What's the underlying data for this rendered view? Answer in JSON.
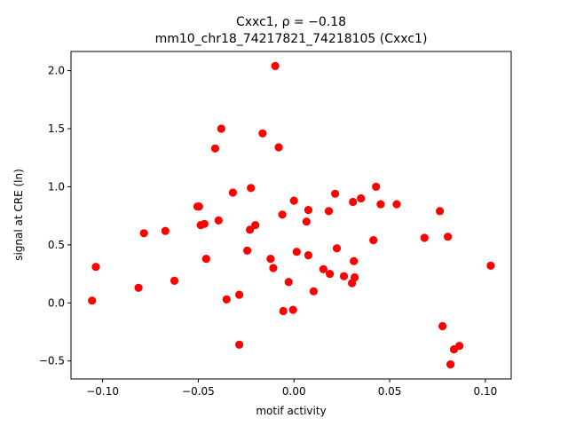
{
  "chart_data": {
    "type": "scatter",
    "title": "Cxxc1, ρ = −0.18",
    "subtitle": "mm10_chr18_74217821_74218105 (Cxxc1)",
    "xlabel": "motif activity",
    "ylabel": "signal at CRE (ln)",
    "xlim": [
      -0.1165,
      0.1135
    ],
    "ylim": [
      -0.655,
      2.165
    ],
    "xticks": [
      -0.1,
      -0.05,
      0.0,
      0.05,
      0.1
    ],
    "xtick_labels": [
      "−0.10",
      "−0.05",
      "0.00",
      "0.05",
      "0.10"
    ],
    "yticks": [
      -0.5,
      0.0,
      0.5,
      1.0,
      1.5,
      2.0
    ],
    "ytick_labels": [
      "−0.5",
      "0.0",
      "0.5",
      "1.0",
      "1.5",
      "2.0"
    ],
    "grid": false,
    "marker_color": "#ff0000",
    "points": [
      {
        "x": -0.1055,
        "y": 0.02
      },
      {
        "x": -0.1035,
        "y": 0.31
      },
      {
        "x": -0.0812,
        "y": 0.13
      },
      {
        "x": -0.0784,
        "y": 0.6
      },
      {
        "x": -0.0672,
        "y": 0.62
      },
      {
        "x": -0.0625,
        "y": 0.19
      },
      {
        "x": -0.0504,
        "y": 0.83
      },
      {
        "x": -0.0496,
        "y": 0.83
      },
      {
        "x": -0.0487,
        "y": 0.67
      },
      {
        "x": -0.0468,
        "y": 0.68
      },
      {
        "x": -0.0459,
        "y": 0.38
      },
      {
        "x": -0.0412,
        "y": 1.33
      },
      {
        "x": -0.0394,
        "y": 0.71
      },
      {
        "x": -0.038,
        "y": 1.5
      },
      {
        "x": -0.0352,
        "y": 0.03
      },
      {
        "x": -0.0319,
        "y": 0.95
      },
      {
        "x": -0.0286,
        "y": 0.07
      },
      {
        "x": -0.0286,
        "y": -0.36
      },
      {
        "x": -0.0244,
        "y": 0.45
      },
      {
        "x": -0.023,
        "y": 0.63
      },
      {
        "x": -0.0225,
        "y": 0.99
      },
      {
        "x": -0.0202,
        "y": 0.67
      },
      {
        "x": -0.0164,
        "y": 1.46
      },
      {
        "x": -0.0122,
        "y": 0.38
      },
      {
        "x": -0.0108,
        "y": 0.3
      },
      {
        "x": -0.0098,
        "y": 2.04
      },
      {
        "x": -0.008,
        "y": 1.34
      },
      {
        "x": -0.0056,
        "y": -0.07
      },
      {
        "x": -0.0061,
        "y": 0.76
      },
      {
        "x": -0.0028,
        "y": 0.18
      },
      {
        "x": -0.0005,
        "y": -0.06
      },
      {
        "x": 0.0,
        "y": 0.88
      },
      {
        "x": 0.0014,
        "y": 0.44
      },
      {
        "x": 0.0065,
        "y": 0.7
      },
      {
        "x": 0.0075,
        "y": 0.8
      },
      {
        "x": 0.0075,
        "y": 0.41
      },
      {
        "x": 0.0103,
        "y": 0.1
      },
      {
        "x": 0.0154,
        "y": 0.29
      },
      {
        "x": 0.0182,
        "y": 0.79
      },
      {
        "x": 0.0187,
        "y": 0.25
      },
      {
        "x": 0.0215,
        "y": 0.94
      },
      {
        "x": 0.0224,
        "y": 0.47
      },
      {
        "x": 0.0261,
        "y": 0.23
      },
      {
        "x": 0.0303,
        "y": 0.17
      },
      {
        "x": 0.0308,
        "y": 0.87
      },
      {
        "x": 0.0313,
        "y": 0.36
      },
      {
        "x": 0.0317,
        "y": 0.22
      },
      {
        "x": 0.035,
        "y": 0.9
      },
      {
        "x": 0.0415,
        "y": 0.54
      },
      {
        "x": 0.0429,
        "y": 1.0
      },
      {
        "x": 0.0453,
        "y": 0.85
      },
      {
        "x": 0.0537,
        "y": 0.85
      },
      {
        "x": 0.0682,
        "y": 0.56
      },
      {
        "x": 0.0762,
        "y": 0.79
      },
      {
        "x": 0.0776,
        "y": -0.2
      },
      {
        "x": 0.0804,
        "y": 0.57
      },
      {
        "x": 0.0818,
        "y": -0.53
      },
      {
        "x": 0.0836,
        "y": -0.4
      },
      {
        "x": 0.0864,
        "y": -0.37
      },
      {
        "x": 0.1028,
        "y": 0.32
      }
    ]
  }
}
